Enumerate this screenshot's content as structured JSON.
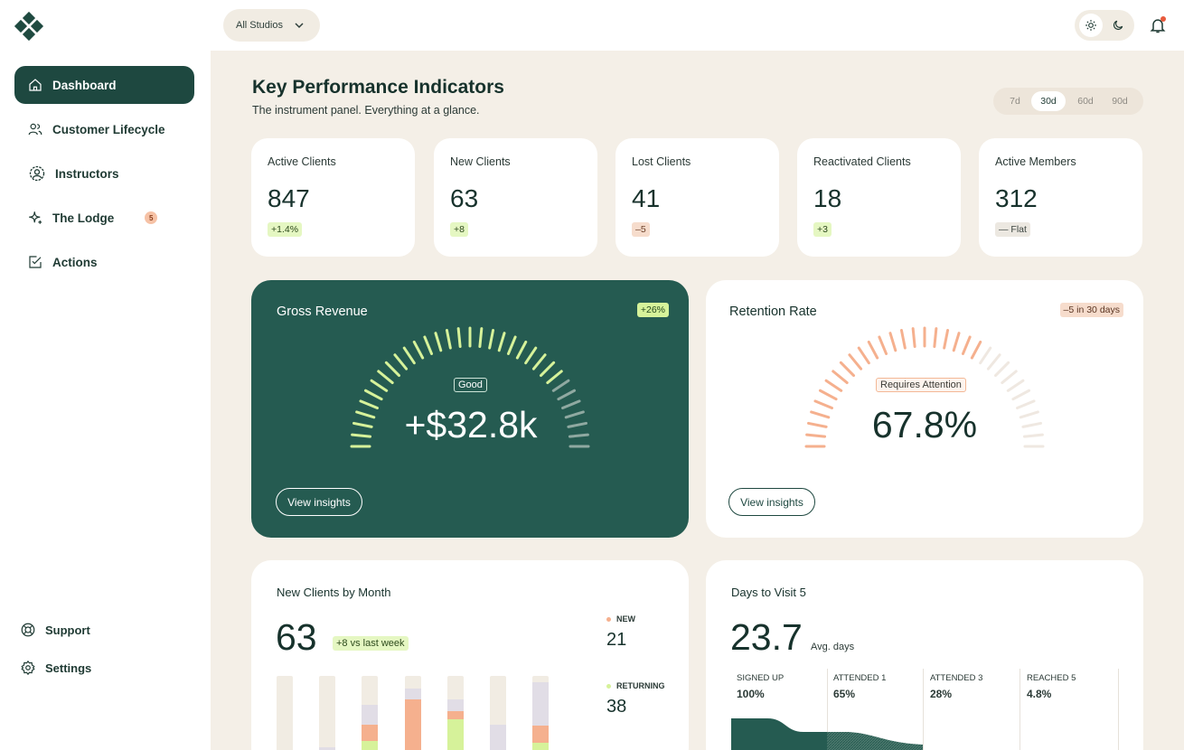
{
  "sidebar": {
    "items": [
      {
        "label": "Dashboard",
        "icon": "home-icon",
        "active": true
      },
      {
        "label": "Customer Lifecycle",
        "icon": "users-icon"
      },
      {
        "label": "Instructors",
        "icon": "instructor-icon"
      },
      {
        "label": "The Lodge",
        "icon": "sparkle-icon",
        "badge": "5"
      },
      {
        "label": "Actions",
        "icon": "checkbox-icon"
      }
    ],
    "bottom": [
      {
        "label": "Support",
        "icon": "lifebuoy-icon"
      },
      {
        "label": "Settings",
        "icon": "gear-icon"
      }
    ]
  },
  "topbar": {
    "studio_select": "All Studios",
    "theme": "light"
  },
  "page": {
    "title": "Key Performance Indicators",
    "subtitle": "The instrument panel. Everything at a glance."
  },
  "range": {
    "options": [
      "7d",
      "30d",
      "60d",
      "90d"
    ],
    "selected": "30d"
  },
  "kpis": [
    {
      "label": "Active Clients",
      "value": "847",
      "delta": "+1.4%",
      "trend": "up"
    },
    {
      "label": "New Clients",
      "value": "63",
      "delta": "+8",
      "trend": "up"
    },
    {
      "label": "Lost Clients",
      "value": "41",
      "delta": "–5",
      "trend": "down"
    },
    {
      "label": "Reactivated Clients",
      "value": "18",
      "delta": "+3",
      "trend": "up"
    },
    {
      "label": "Active Members",
      "value": "312",
      "delta": "— Flat",
      "trend": "flat"
    }
  ],
  "gross_revenue": {
    "title": "Gross Revenue",
    "delta": "+26%",
    "status": "Good",
    "value": "+$32.8k",
    "fill": 0.8,
    "button": "View insights"
  },
  "retention": {
    "title": "Retention Rate",
    "delta": "–5 in 30 days",
    "status": "Requires Attention",
    "value": "67.8%",
    "fill": 0.68,
    "button": "View insights"
  },
  "new_clients_month": {
    "title": "New Clients by Month",
    "value": "63",
    "delta": "+8 vs last week",
    "legend": [
      {
        "label": "NEW",
        "value": "21",
        "color": "#f5b08e"
      },
      {
        "label": "RETURNING",
        "value": "38",
        "color": "#d6f29a"
      }
    ]
  },
  "days_to_visit": {
    "title": "Days to Visit 5",
    "value": "23.7",
    "unit": "Avg. days",
    "stages": [
      {
        "label": "SIGNED UP",
        "pct": "100%"
      },
      {
        "label": "ATTENDED 1",
        "pct": "65%"
      },
      {
        "label": "ATTENDED 3",
        "pct": "28%"
      },
      {
        "label": "REACHED 5",
        "pct": "4.8%"
      }
    ]
  },
  "colors": {
    "brand_dark": "#1e4840",
    "revenue_card": "#255b51",
    "background": "#f4efe7",
    "good": "#d6f29a",
    "attention": "#f5b08e"
  }
}
